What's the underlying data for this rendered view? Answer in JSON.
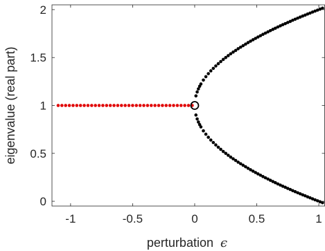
{
  "chart_data": {
    "type": "scatter",
    "title": "",
    "xlabel": "perturbation",
    "xlabel_symbol": "ϵ",
    "ylabel": "eigenvalue (real part)",
    "xlim": [
      -1.15,
      1.05
    ],
    "ylim": [
      -0.05,
      2.05
    ],
    "x_ticks": [
      -1,
      -0.5,
      0,
      0.5,
      1
    ],
    "x_tick_labels": [
      "-1",
      "-0.5",
      "0",
      "0.5",
      "1"
    ],
    "y_ticks": [
      0,
      0.5,
      1,
      1.5,
      2
    ],
    "y_tick_labels": [
      "0",
      "0.5",
      "1",
      "1.5",
      "2"
    ],
    "grid": false,
    "legend": "none",
    "series": [
      {
        "role": "real-double-eigenvalue",
        "color": "#e00000",
        "x": [
          -1.1,
          -1.07,
          -1.04,
          -1.01,
          -0.98,
          -0.95,
          -0.92,
          -0.89,
          -0.86,
          -0.83,
          -0.8,
          -0.77,
          -0.74,
          -0.71,
          -0.68,
          -0.65,
          -0.62,
          -0.59,
          -0.56,
          -0.53,
          -0.5,
          -0.47,
          -0.44,
          -0.41,
          -0.38,
          -0.35,
          -0.32,
          -0.29,
          -0.26,
          -0.23,
          -0.2,
          -0.17,
          -0.14,
          -0.11,
          -0.08,
          -0.05,
          -0.02
        ],
        "y": [
          1,
          1,
          1,
          1,
          1,
          1,
          1,
          1,
          1,
          1,
          1,
          1,
          1,
          1,
          1,
          1,
          1,
          1,
          1,
          1,
          1,
          1,
          1,
          1,
          1,
          1,
          1,
          1,
          1,
          1,
          1,
          1,
          1,
          1,
          1,
          1,
          1
        ]
      },
      {
        "role": "upper-branch",
        "color": "#000000",
        "x": [
          0.01,
          0.02,
          0.03,
          0.04,
          0.05,
          0.07,
          0.09,
          0.11,
          0.13,
          0.15,
          0.17,
          0.19,
          0.21,
          0.23,
          0.25,
          0.27,
          0.29,
          0.31,
          0.33,
          0.35,
          0.37,
          0.39,
          0.41,
          0.43,
          0.45,
          0.47,
          0.49,
          0.51,
          0.53,
          0.55,
          0.57,
          0.59,
          0.61,
          0.63,
          0.65,
          0.67,
          0.69,
          0.71,
          0.73,
          0.75,
          0.77,
          0.79,
          0.81,
          0.83,
          0.85,
          0.87,
          0.89,
          0.91,
          0.93,
          0.95,
          0.97,
          0.99,
          1.01,
          1.03
        ],
        "y": [
          1.1,
          1.141,
          1.173,
          1.2,
          1.224,
          1.265,
          1.3,
          1.332,
          1.361,
          1.387,
          1.412,
          1.436,
          1.458,
          1.48,
          1.5,
          1.52,
          1.539,
          1.557,
          1.574,
          1.592,
          1.608,
          1.624,
          1.64,
          1.656,
          1.671,
          1.686,
          1.7,
          1.714,
          1.728,
          1.742,
          1.755,
          1.768,
          1.781,
          1.794,
          1.806,
          1.819,
          1.831,
          1.843,
          1.854,
          1.866,
          1.877,
          1.889,
          1.9,
          1.911,
          1.922,
          1.933,
          1.943,
          1.954,
          1.964,
          1.975,
          1.985,
          1.995,
          2.005,
          2.015
        ]
      },
      {
        "role": "lower-branch",
        "color": "#000000",
        "x": [
          0.01,
          0.02,
          0.03,
          0.04,
          0.05,
          0.07,
          0.09,
          0.11,
          0.13,
          0.15,
          0.17,
          0.19,
          0.21,
          0.23,
          0.25,
          0.27,
          0.29,
          0.31,
          0.33,
          0.35,
          0.37,
          0.39,
          0.41,
          0.43,
          0.45,
          0.47,
          0.49,
          0.51,
          0.53,
          0.55,
          0.57,
          0.59,
          0.61,
          0.63,
          0.65,
          0.67,
          0.69,
          0.71,
          0.73,
          0.75,
          0.77,
          0.79,
          0.81,
          0.83,
          0.85,
          0.87,
          0.89,
          0.91,
          0.93,
          0.95,
          0.97,
          0.99,
          1.01,
          1.03
        ],
        "y": [
          0.9,
          0.859,
          0.827,
          0.8,
          0.776,
          0.735,
          0.7,
          0.668,
          0.639,
          0.613,
          0.588,
          0.564,
          0.542,
          0.52,
          0.5,
          0.48,
          0.461,
          0.443,
          0.426,
          0.408,
          0.392,
          0.376,
          0.36,
          0.344,
          0.329,
          0.314,
          0.3,
          0.286,
          0.272,
          0.258,
          0.245,
          0.232,
          0.219,
          0.206,
          0.194,
          0.181,
          0.169,
          0.157,
          0.146,
          0.134,
          0.123,
          0.111,
          0.1,
          0.089,
          0.078,
          0.067,
          0.057,
          0.046,
          0.036,
          0.025,
          0.015,
          0.005,
          -0.005,
          -0.015
        ]
      }
    ],
    "annotations": [
      {
        "role": "branch-point",
        "marker": "open-circle",
        "x": 0,
        "y": 1
      }
    ]
  }
}
